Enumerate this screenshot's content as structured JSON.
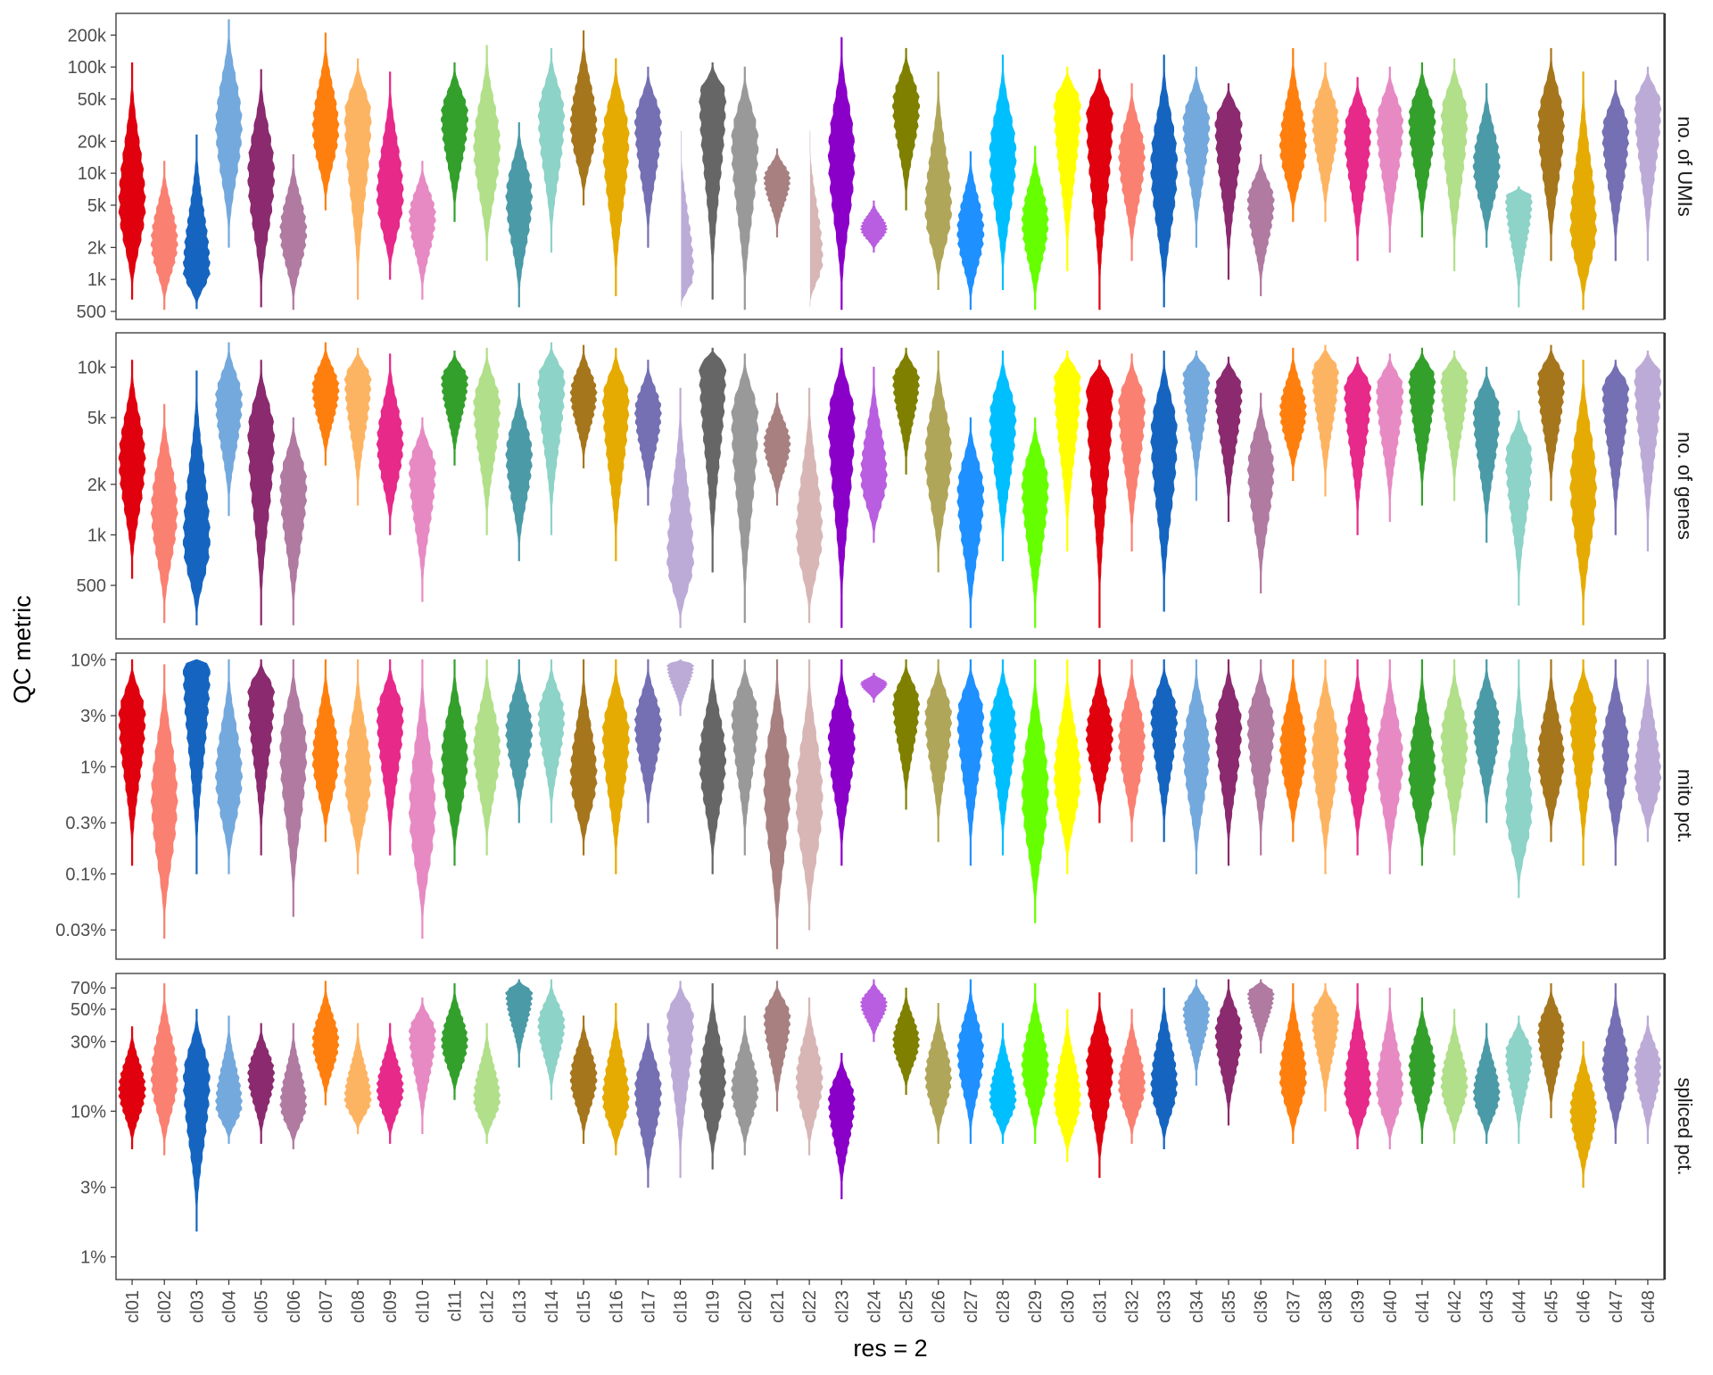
{
  "chart_data": {
    "type": "violin",
    "xlabel": "res = 2",
    "ylabel": "QC metric",
    "categories": [
      "cl01",
      "cl02",
      "cl03",
      "cl04",
      "cl05",
      "cl06",
      "cl07",
      "cl08",
      "cl09",
      "cl10",
      "cl11",
      "cl12",
      "cl13",
      "cl14",
      "cl15",
      "cl16",
      "cl17",
      "cl18",
      "cl19",
      "cl20",
      "cl21",
      "cl22",
      "cl23",
      "cl24",
      "cl25",
      "cl26",
      "cl27",
      "cl28",
      "cl29",
      "cl30",
      "cl31",
      "cl32",
      "cl33",
      "cl34",
      "cl35",
      "cl36",
      "cl37",
      "cl38",
      "cl39",
      "cl40",
      "cl41",
      "cl42",
      "cl43",
      "cl44",
      "cl45",
      "cl46",
      "cl47",
      "cl48"
    ],
    "colors": [
      "#e0000e",
      "#fa8072",
      "#1565c0",
      "#74a9dd",
      "#8b2a6e",
      "#b07aa1",
      "#ff7f0e",
      "#fdb462",
      "#e7298a",
      "#e78ac3",
      "#33a02c",
      "#b2df8a",
      "#4b9aa8",
      "#8dd3c7",
      "#a6761d",
      "#e6ab02",
      "#7570b3",
      "#bcabd7",
      "#666666",
      "#999999",
      "#a88080",
      "#d8b6b6",
      "#8b00c9",
      "#b95ee0",
      "#808000",
      "#b0a65a",
      "#1e90ff",
      "#00bfff",
      "#66ff00",
      "#ffff00",
      "#e0000e",
      "#fa8072",
      "#1565c0",
      "#74a9dd",
      "#8b2a6e",
      "#b07aa1",
      "#ff7f0e",
      "#fdb462",
      "#e7298a",
      "#e78ac3",
      "#33a02c",
      "#b2df8a",
      "#4b9aa8",
      "#8dd3c7",
      "#a6761d",
      "#e6ab02",
      "#7570b3",
      "#bcabd7"
    ],
    "facets": [
      {
        "label": "no. of UMIs",
        "scale": "log10",
        "ylim": [
          420,
          320000
        ],
        "ticks": [
          500,
          1000,
          2000,
          5000,
          10000,
          20000,
          50000,
          100000,
          200000
        ],
        "tick_labels": [
          "500",
          "1k",
          "2k",
          "5k",
          "10k",
          "20k",
          "50k",
          "100k",
          "200k"
        ],
        "medians": [
          5000,
          2200,
          1200,
          28000,
          10000,
          2800,
          26000,
          35000,
          6000,
          4000,
          35000,
          18000,
          6000,
          35000,
          28000,
          22000,
          30000,
          1100,
          55000,
          20000,
          9000,
          1500,
          15000,
          3000,
          45000,
          4500,
          2800,
          15000,
          3500,
          45000,
          35000,
          15000,
          12000,
          30000,
          30000,
          5500,
          18000,
          32000,
          25000,
          30000,
          32000,
          35000,
          12000,
          6000,
          30000,
          3000,
          25000,
          45000
        ],
        "mins": [
          650,
          520,
          530,
          2000,
          550,
          520,
          4500,
          650,
          1000,
          650,
          3500,
          1500,
          550,
          1800,
          5000,
          700,
          2000,
          520,
          650,
          520,
          2500,
          520,
          520,
          1800,
          4500,
          800,
          520,
          800,
          520,
          1200,
          520,
          1500,
          550,
          2000,
          1000,
          700,
          3500,
          3500,
          1500,
          1800,
          2500,
          1200,
          2000,
          550,
          1500,
          520,
          1500,
          1500
        ],
        "maxs": [
          110000,
          13000,
          23000,
          280000,
          95000,
          15000,
          210000,
          120000,
          90000,
          13000,
          110000,
          160000,
          30000,
          150000,
          220000,
          120000,
          100000,
          25000,
          110000,
          100000,
          17000,
          25000,
          190000,
          5500,
          150000,
          90000,
          16000,
          130000,
          18000,
          100000,
          95000,
          70000,
          130000,
          100000,
          70000,
          15000,
          150000,
          110000,
          80000,
          100000,
          110000,
          120000,
          70000,
          7500,
          150000,
          90000,
          75000,
          100000
        ]
      },
      {
        "label": "no. of genes",
        "scale": "log10",
        "ylim": [
          240,
          16000
        ],
        "ticks": [
          500,
          1000,
          2000,
          5000,
          10000
        ],
        "tick_labels": [
          "500",
          "1k",
          "2k",
          "5k",
          "10k"
        ],
        "medians": [
          2800,
          1400,
          900,
          6500,
          4000,
          2000,
          7500,
          8500,
          3500,
          2500,
          8500,
          6000,
          3000,
          8500,
          7000,
          6500,
          5500,
          700,
          10000,
          5000,
          3500,
          1000,
          5000,
          2200,
          8500,
          3000,
          1800,
          5000,
          2000,
          8500,
          7500,
          6000,
          4000,
          9000,
          7500,
          2500,
          5500,
          9500,
          7500,
          7500,
          8500,
          8500,
          5500,
          3000,
          8500,
          2000,
          7500,
          9000
        ],
        "mins": [
          550,
          300,
          290,
          1300,
          290,
          290,
          2600,
          1500,
          1000,
          400,
          2600,
          1000,
          700,
          1000,
          2500,
          700,
          1500,
          280,
          600,
          300,
          1500,
          300,
          280,
          900,
          2300,
          600,
          280,
          700,
          280,
          800,
          280,
          800,
          350,
          1600,
          1200,
          450,
          2100,
          1700,
          1000,
          1200,
          1500,
          1600,
          900,
          380,
          1600,
          290,
          1000,
          800
        ],
        "maxs": [
          11000,
          6000,
          9500,
          14000,
          11000,
          5000,
          14000,
          13000,
          12000,
          5000,
          12500,
          13000,
          8000,
          14000,
          13500,
          13000,
          11000,
          7500,
          13000,
          12000,
          7000,
          7500,
          13000,
          10000,
          13000,
          12500,
          5000,
          12500,
          5000,
          12500,
          11000,
          12000,
          12500,
          12500,
          11500,
          7000,
          13000,
          13500,
          11500,
          12000,
          13000,
          12500,
          10000,
          5500,
          13500,
          11000,
          11000,
          12500
        ]
      },
      {
        "label": "mito pct.",
        "scale": "log10",
        "ylim": [
          0.016,
          11.5
        ],
        "ticks": [
          0.03,
          0.1,
          0.3,
          1,
          3,
          10
        ],
        "tick_labels": [
          "0.03%",
          "0.1%",
          "0.3%",
          "1%",
          "3%",
          "10%"
        ],
        "medians": [
          3,
          0.5,
          9,
          0.8,
          5,
          1.5,
          1.2,
          0.8,
          3,
          0.4,
          1.2,
          1.5,
          2.2,
          3,
          0.8,
          2,
          2.5,
          9,
          1.2,
          3,
          0.7,
          0.5,
          1.8,
          6,
          4,
          3,
          3,
          2.5,
          0.6,
          0.8,
          2,
          1.8,
          3,
          1.5,
          2.5,
          2.5,
          1.5,
          1.5,
          1.5,
          1.2,
          0.9,
          1.8,
          2.5,
          0.4,
          1.2,
          3,
          1.5,
          0.8
        ],
        "mins": [
          0.12,
          0.025,
          0.1,
          0.1,
          0.15,
          0.04,
          0.2,
          0.1,
          0.15,
          0.025,
          0.12,
          0.15,
          0.3,
          0.3,
          0.15,
          0.1,
          0.3,
          3,
          0.1,
          0.15,
          0.02,
          0.03,
          0.12,
          4,
          0.4,
          0.2,
          0.12,
          0.15,
          0.035,
          0.1,
          0.3,
          0.2,
          0.2,
          0.1,
          0.12,
          0.15,
          0.2,
          0.1,
          0.15,
          0.1,
          0.12,
          0.15,
          0.3,
          0.06,
          0.2,
          0.12,
          0.12,
          0.2
        ],
        "maxs": [
          10,
          9,
          10,
          10,
          10,
          10,
          10,
          10,
          10,
          10,
          10,
          10,
          10,
          10,
          10,
          10,
          10,
          10,
          10,
          10,
          10,
          10,
          10,
          7.5,
          10,
          10,
          10,
          10,
          10,
          10,
          10,
          10,
          10,
          10,
          10,
          10,
          10,
          10,
          10,
          10,
          10,
          10,
          10,
          10,
          10,
          10,
          10,
          10
        ]
      },
      {
        "label": "spliced pct.",
        "scale": "log10",
        "ylim": [
          0.7,
          88
        ],
        "ticks": [
          1,
          3,
          10,
          30,
          50,
          70
        ],
        "tick_labels": [
          "1%",
          "3%",
          "10%",
          "30%",
          "50%",
          "70%"
        ],
        "medians": [
          14,
          17,
          17,
          11,
          18,
          11,
          30,
          12,
          14,
          35,
          30,
          12,
          65,
          40,
          17,
          12,
          14,
          45,
          16,
          14,
          45,
          16,
          12,
          55,
          30,
          17,
          25,
          12,
          20,
          12,
          20,
          15,
          15,
          50,
          35,
          65,
          17,
          45,
          14,
          14,
          20,
          15,
          13,
          25,
          35,
          10,
          20,
          20
        ],
        "mins": [
          5.5,
          5,
          1.5,
          6,
          6,
          5.5,
          11,
          7,
          6,
          7,
          12,
          6,
          20,
          12,
          6,
          5,
          3,
          3.5,
          4,
          5,
          10,
          5,
          2.5,
          30,
          13,
          6,
          6,
          6,
          6,
          4.5,
          3.5,
          6,
          5.5,
          15,
          8,
          25,
          6,
          10,
          5.5,
          5.5,
          6,
          6,
          6,
          6,
          9,
          3,
          6,
          6
        ],
        "maxs": [
          38,
          75,
          50,
          45,
          40,
          40,
          78,
          40,
          40,
          60,
          75,
          40,
          80,
          80,
          45,
          55,
          40,
          78,
          75,
          45,
          78,
          60,
          25,
          80,
          70,
          55,
          80,
          40,
          75,
          50,
          65,
          50,
          70,
          80,
          80,
          80,
          75,
          75,
          75,
          70,
          60,
          50,
          40,
          45,
          75,
          30,
          75,
          45
        ]
      }
    ]
  }
}
